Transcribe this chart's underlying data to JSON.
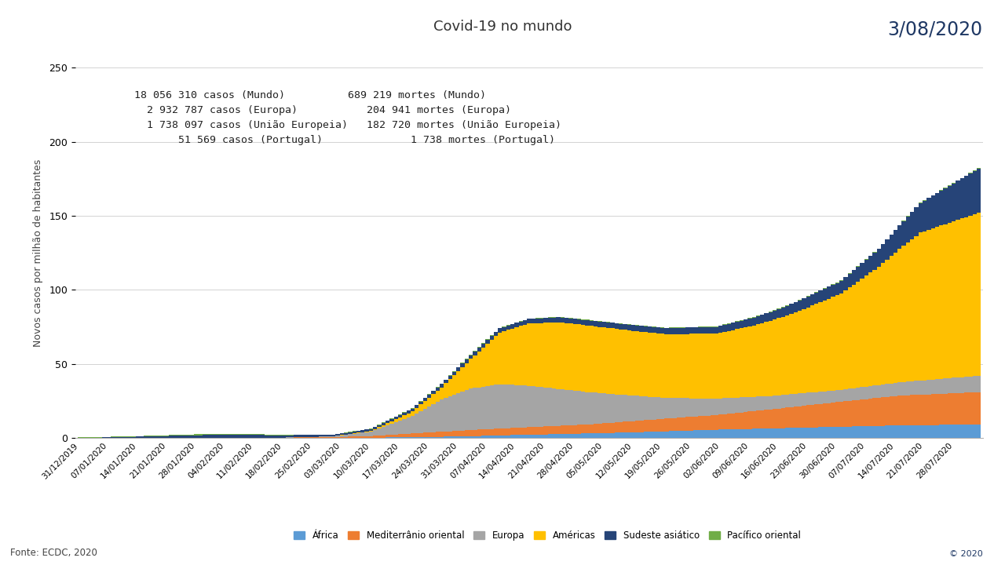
{
  "title": "Covid-19 no mundo",
  "date_label": "3/08/2020",
  "ylabel": "Novos casos por milhão de habitantes",
  "fonte": "Fonte: ECDC, 2020",
  "legend_labels": [
    "África",
    "Mediterrânio oriental",
    "Europa",
    "Américas",
    "Sudeste asiático",
    "Pacífico oriental"
  ],
  "legend_colors": [
    "#5B9BD5",
    "#ED7D31",
    "#A5A5A5",
    "#FFC000",
    "#264478",
    "#70AD47"
  ],
  "ylim": [
    0,
    250
  ],
  "yticks": [
    0,
    50,
    100,
    150,
    200,
    250
  ],
  "annotation_line1": "18 056 310 casos (Mundo)          689 219 mortes (Mundo)",
  "annotation_line2": "  2 932 787 casos (Europa)           204 941 mortes (Europa)",
  "annotation_line3": "  1 738 097 casos (União Europeia)   182 720 mortes (União Europeia)",
  "annotation_line4": "       51 569 casos (Portugal)              1 738 mortes (Portugal)",
  "copyright": "© 2020"
}
